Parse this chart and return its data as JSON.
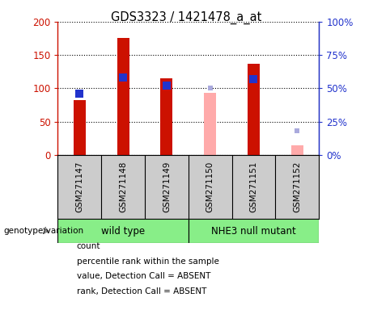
{
  "title": "GDS3323 / 1421478_a_at",
  "samples": [
    "GSM271147",
    "GSM271148",
    "GSM271149",
    "GSM271150",
    "GSM271151",
    "GSM271152"
  ],
  "count_values": [
    82,
    176,
    115,
    null,
    137,
    null
  ],
  "count_absent_values": [
    null,
    null,
    null,
    93,
    null,
    14
  ],
  "percentile_rank": [
    46,
    58,
    52,
    null,
    57,
    null
  ],
  "percentile_rank_absent": [
    null,
    null,
    null,
    50,
    null,
    18
  ],
  "ylim_left": [
    0,
    200
  ],
  "ylim_right": [
    0,
    100
  ],
  "left_ticks": [
    0,
    50,
    100,
    150,
    200
  ],
  "right_ticks": [
    0,
    25,
    50,
    75,
    100
  ],
  "left_tick_labels": [
    "0",
    "50",
    "100",
    "150",
    "200"
  ],
  "right_tick_labels": [
    "0%",
    "25%",
    "50%",
    "75%",
    "100%"
  ],
  "color_count": "#cc1100",
  "color_rank": "#2233cc",
  "color_count_absent": "#ffaaaa",
  "color_rank_absent": "#aaaadd",
  "color_left_axis": "#cc1100",
  "color_right_axis": "#2233cc",
  "wild_type_label": "wild type",
  "mutant_label": "NHE3 null mutant",
  "genotype_label": "genotype/variation",
  "bg_color": "#cccccc",
  "plot_bg_color": "#ffffff",
  "green_color": "#88ee88",
  "bar_width": 0.28,
  "rank_marker_size": 7,
  "rank_absent_marker_size": 5,
  "legend_items": [
    {
      "color": "#cc1100",
      "label": "count"
    },
    {
      "color": "#2233cc",
      "label": "percentile rank within the sample"
    },
    {
      "color": "#ffaaaa",
      "label": "value, Detection Call = ABSENT"
    },
    {
      "color": "#aaaadd",
      "label": "rank, Detection Call = ABSENT"
    }
  ]
}
